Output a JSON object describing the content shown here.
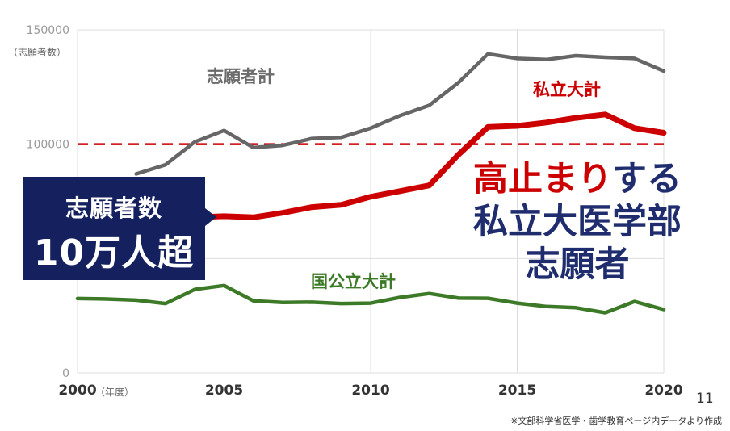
{
  "chart_data": {
    "type": "line",
    "ylabel": "（志願者数）",
    "xlabel": "（年度）",
    "x": [
      2000,
      2001,
      2002,
      2003,
      2004,
      2005,
      2006,
      2007,
      2008,
      2009,
      2010,
      2011,
      2012,
      2013,
      2014,
      2015,
      2016,
      2017,
      2018,
      2019,
      2020
    ],
    "ylim": [
      0,
      150000
    ],
    "xlim": [
      2000,
      2020
    ],
    "yticks": [
      "150000",
      "100000",
      "0"
    ],
    "xticks": [
      "2000",
      "2005",
      "2010",
      "2015",
      "2020"
    ],
    "grid": true,
    "reference_line": {
      "value": 100000,
      "style": "dashed",
      "color": "#cc0000"
    },
    "series": [
      {
        "name": "志願者計",
        "color": "#666666",
        "values": [
          null,
          null,
          87000,
          91000,
          101000,
          106000,
          98500,
          99500,
          102500,
          103000,
          107000,
          112500,
          117000,
          127000,
          139500,
          137500,
          137000,
          138700,
          138000,
          137500,
          132000
        ]
      },
      {
        "name": "私立大計",
        "color": "#cc0000",
        "values": [
          null,
          null,
          null,
          null,
          68000,
          68500,
          68000,
          70000,
          72500,
          73500,
          77000,
          79500,
          82000,
          95500,
          107500,
          108000,
          109500,
          111500,
          113000,
          107000,
          105000
        ]
      },
      {
        "name": "国公立大計",
        "color": "#3d7a27",
        "values": [
          32500,
          32300,
          31800,
          30300,
          36500,
          38200,
          31500,
          30800,
          30900,
          30300,
          30500,
          33000,
          34700,
          32700,
          32600,
          30500,
          29000,
          28500,
          26300,
          31200,
          27700
        ]
      }
    ]
  },
  "callout": {
    "line1": "志願者数",
    "line2": "10万人超"
  },
  "headline": {
    "part_red": "高止まり",
    "part_blue": "する",
    "line2": "私立大医学部",
    "line3": "志願者"
  },
  "page_number": "11",
  "source_note": "※文部科学省医学・歯学教育ページ内データより作成"
}
